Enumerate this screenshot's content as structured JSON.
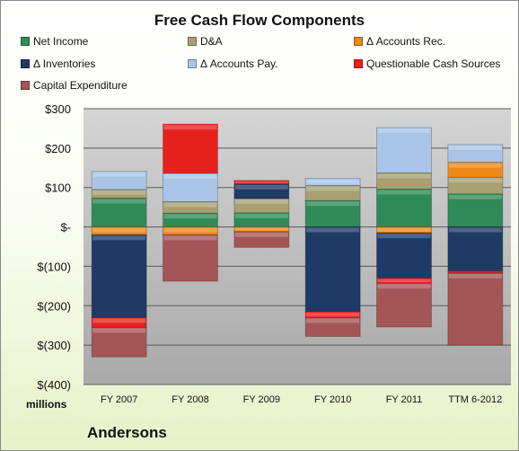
{
  "chart_data": {
    "type": "bar",
    "stacked": true,
    "title": "Free Cash Flow Components",
    "company": "Andersons",
    "units_label": "millions",
    "categories": [
      "FY 2007",
      "FY 2008",
      "FY 2009",
      "FY 2010",
      "FY 2011",
      "TTM 6-2012"
    ],
    "y_ticks": [
      "$300",
      "$200",
      "$100",
      "$-",
      "$(100)",
      "$(200)",
      "$(300)",
      "$(400)"
    ],
    "ylim": [
      -400,
      300
    ],
    "grid": true,
    "legend_position": "top",
    "series": [
      {
        "name": "Net Income",
        "color": "#2e8b57",
        "values": [
          73,
          35,
          36,
          67,
          96,
          84
        ]
      },
      {
        "name": "D&A",
        "color": "#a8a070",
        "values": [
          22,
          29,
          36,
          38,
          41,
          42
        ]
      },
      {
        "name": "Δ Accounts Rec.",
        "color": "#ef8a1a",
        "values": [
          -20,
          -20,
          -12,
          0,
          -15,
          38
        ]
      },
      {
        "name": "Δ Inventories",
        "color": "#1f3a66",
        "values": [
          -210,
          0,
          37,
          -215,
          -115,
          -112
        ]
      },
      {
        "name": "Δ Accounts Pay.",
        "color": "#a9c4e6",
        "values": [
          46,
          72,
          0,
          18,
          115,
          45
        ]
      },
      {
        "name": "Questionable Cash Sources",
        "color": "#e8211f",
        "values": [
          -25,
          125,
          9,
          -15,
          -13,
          -5
        ]
      },
      {
        "name": "Capital Expenditure",
        "color": "#a45555",
        "values": [
          -75,
          -118,
          -40,
          -48,
          -111,
          -183
        ]
      }
    ]
  },
  "colors": {
    "plot_background": "#bcbcbc",
    "gridline": "#5a5a5a"
  }
}
